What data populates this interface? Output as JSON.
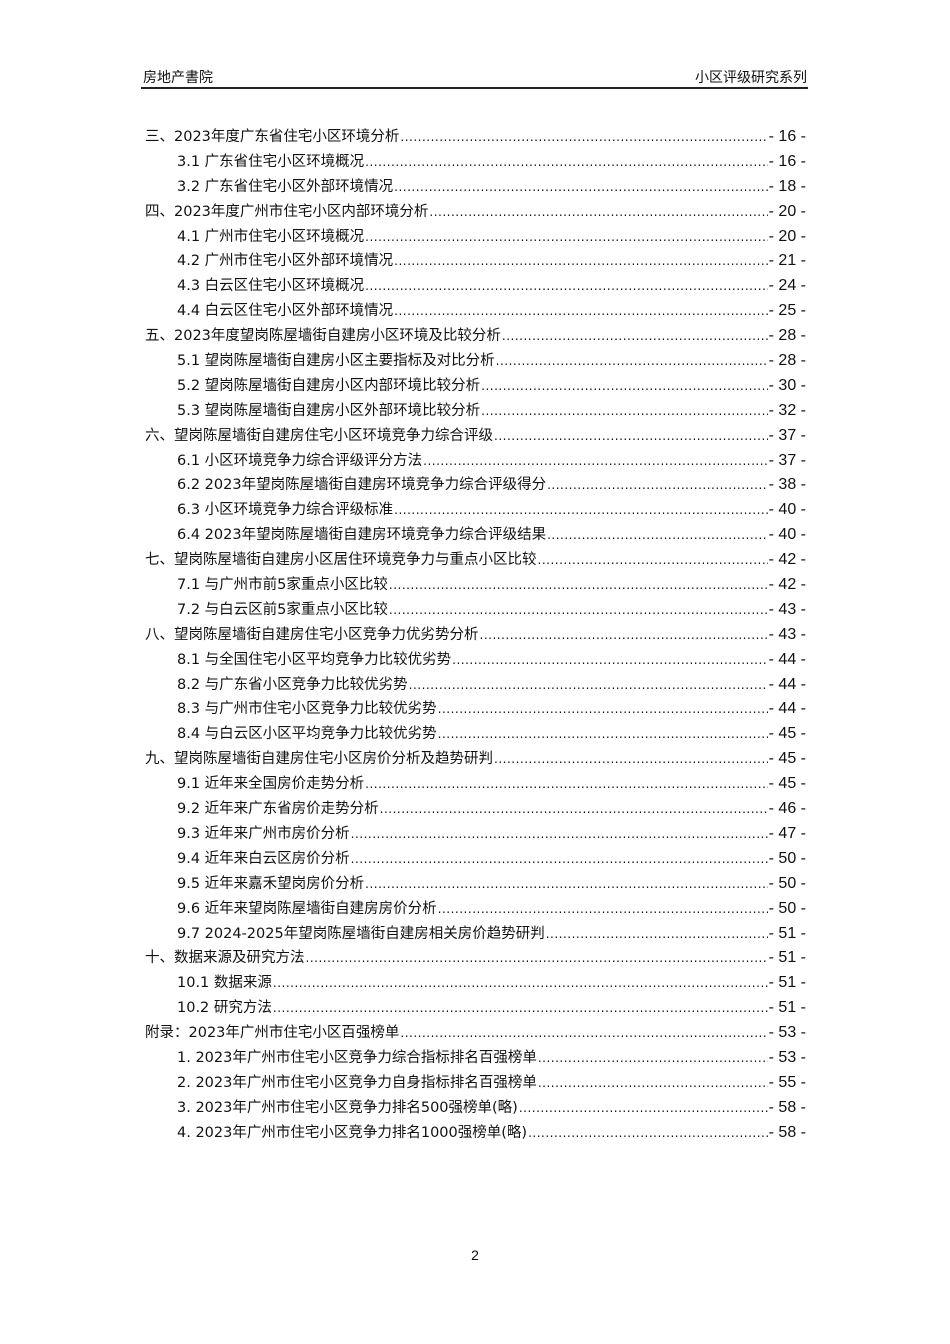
{
  "header": {
    "left": "房地产書院",
    "right": "小区评级研究系列"
  },
  "toc": [
    {
      "level": 1,
      "title": "三、2023年度广东省住宅小区环境分析",
      "page": "- 16 -"
    },
    {
      "level": 2,
      "title": "3.1 广东省住宅小区环境概况",
      "page": "- 16 -"
    },
    {
      "level": 2,
      "title": "3.2 广东省住宅小区外部环境情况",
      "page": "- 18 -"
    },
    {
      "level": 1,
      "title": "四、2023年度广州市住宅小区内部环境分析",
      "page": "- 20 -"
    },
    {
      "level": 2,
      "title": "4.1 广州市住宅小区环境概况",
      "page": "- 20 -"
    },
    {
      "level": 2,
      "title": "4.2 广州市住宅小区外部环境情况",
      "page": "- 21 -"
    },
    {
      "level": 2,
      "title": "4.3 白云区住宅小区环境概况",
      "page": "- 24 -"
    },
    {
      "level": 2,
      "title": "4.4 白云区住宅小区外部环境情况",
      "page": "- 25 -"
    },
    {
      "level": 1,
      "title": "五、2023年度望岗陈屋墙街自建房小区环境及比较分析",
      "page": "- 28 -"
    },
    {
      "level": 2,
      "title": "5.1 望岗陈屋墙街自建房小区主要指标及对比分析",
      "page": "- 28 -"
    },
    {
      "level": 2,
      "title": "5.2 望岗陈屋墙街自建房小区内部环境比较分析",
      "page": "- 30 -"
    },
    {
      "level": 2,
      "title": "5.3 望岗陈屋墙街自建房小区外部环境比较分析",
      "page": "- 32 -"
    },
    {
      "level": 1,
      "title": "六、望岗陈屋墙街自建房住宅小区环境竞争力综合评级",
      "page": "- 37 -"
    },
    {
      "level": 2,
      "title": "6.1 小区环境竞争力综合评级评分方法",
      "page": "- 37 -"
    },
    {
      "level": 2,
      "title": "6.2 2023年望岗陈屋墙街自建房环境竞争力综合评级得分",
      "page": "- 38 -"
    },
    {
      "level": 2,
      "title": "6.3 小区环境竞争力综合评级标准",
      "page": "- 40 -"
    },
    {
      "level": 2,
      "title": "6.4 2023年望岗陈屋墙街自建房环境竞争力综合评级结果",
      "page": "- 40 -"
    },
    {
      "level": 1,
      "title": "七、望岗陈屋墙街自建房小区居住环境竞争力与重点小区比较",
      "page": "- 42 -"
    },
    {
      "level": 2,
      "title": "7.1 与广州市前5家重点小区比较",
      "page": "- 42 -"
    },
    {
      "level": 2,
      "title": "7.2 与白云区前5家重点小区比较",
      "page": "- 43 -"
    },
    {
      "level": 1,
      "title": "八、望岗陈屋墙街自建房住宅小区竞争力优劣势分析",
      "page": "- 43 -"
    },
    {
      "level": 2,
      "title": "8.1 与全国住宅小区平均竞争力比较优劣势",
      "page": "- 44 -"
    },
    {
      "level": 2,
      "title": "8.2 与广东省小区竞争力比较优劣势",
      "page": "- 44 -"
    },
    {
      "level": 2,
      "title": "8.3 与广州市住宅小区竞争力比较优劣势",
      "page": "- 44 -"
    },
    {
      "level": 2,
      "title": "8.4 与白云区小区平均竞争力比较优劣势",
      "page": "- 45 -"
    },
    {
      "level": 1,
      "title": "九、望岗陈屋墙街自建房住宅小区房价分析及趋势研判",
      "page": "- 45 -"
    },
    {
      "level": 2,
      "title": "9.1 近年来全国房价走势分析",
      "page": "- 45 -"
    },
    {
      "level": 2,
      "title": "9.2 近年来广东省房价走势分析",
      "page": "- 46 -"
    },
    {
      "level": 2,
      "title": "9.3 近年来广州市房价分析",
      "page": "- 47 -"
    },
    {
      "level": 2,
      "title": "9.4 近年来白云区房价分析",
      "page": "- 50 -"
    },
    {
      "level": 2,
      "title": "9.5 近年来嘉禾望岗房价分析",
      "page": "- 50 -"
    },
    {
      "level": 2,
      "title": "9.6 近年来望岗陈屋墙街自建房房价分析",
      "page": "- 50 -"
    },
    {
      "level": 2,
      "title": "9.7 2024-2025年望岗陈屋墙街自建房相关房价趋势研判",
      "page": "- 51 -"
    },
    {
      "level": 1,
      "title": "十、数据来源及研究方法",
      "page": "- 51 -"
    },
    {
      "level": 2,
      "title": "10.1 数据来源",
      "page": "- 51 -"
    },
    {
      "level": 2,
      "title": "10.2 研究方法",
      "page": "- 51 -"
    },
    {
      "level": 1,
      "title": "附录：2023年广州市住宅小区百强榜单",
      "page": "- 53 -"
    },
    {
      "level": 2,
      "title": "1. 2023年广州市住宅小区竞争力综合指标排名百强榜单",
      "page": "- 53 -"
    },
    {
      "level": 2,
      "title": "2. 2023年广州市住宅小区竞争力自身指标排名百强榜单",
      "page": "- 55 -"
    },
    {
      "level": 2,
      "title": "3. 2023年广州市住宅小区竞争力排名500强榜单(略)",
      "page": "- 58 -"
    },
    {
      "level": 2,
      "title": "4. 2023年广州市住宅小区竞争力排名1000强榜单(略)",
      "page": "- 58 -"
    }
  ],
  "footer": {
    "page_number": "2"
  }
}
